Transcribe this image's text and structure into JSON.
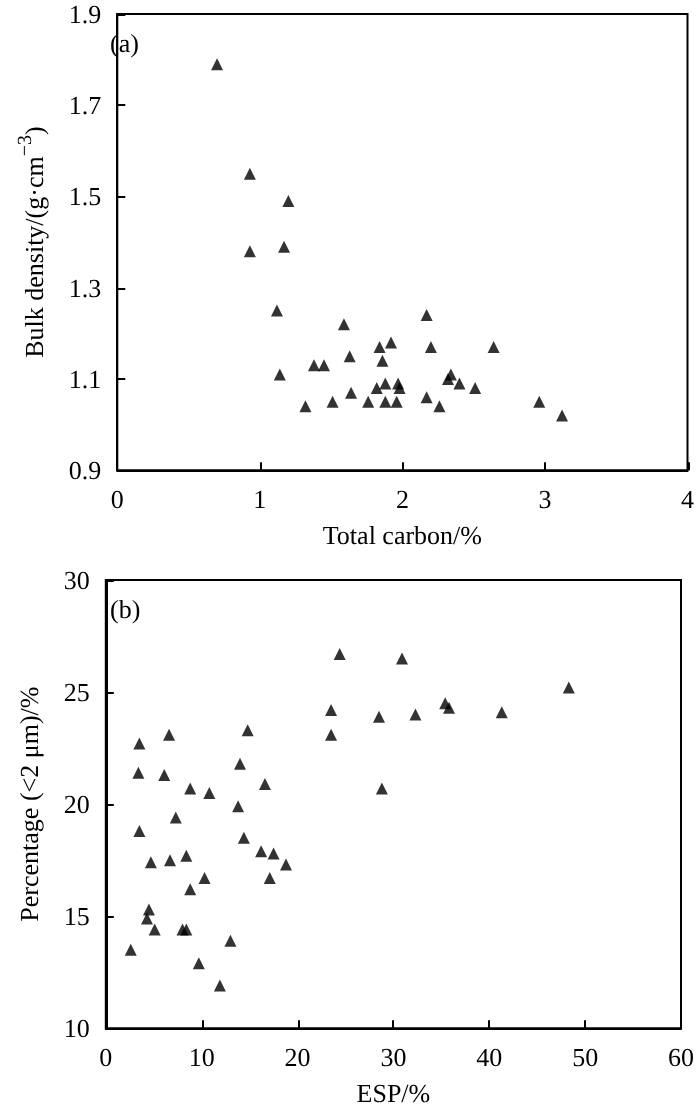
{
  "chart_data": [
    {
      "type": "scatter",
      "xlabel": "Total carbon/%",
      "ylabel": "Bulk density/(g·cm$^{−3}$)",
      "annotations": [
        "(a)"
      ],
      "marker": "triangle",
      "grid": false,
      "xlim": [
        0,
        4
      ],
      "xticks": [
        0,
        1,
        2,
        3,
        4
      ],
      "ylim": [
        0.9,
        1.9
      ],
      "yticks": [
        0.9,
        1.1,
        1.3,
        1.5,
        1.7,
        1.9
      ],
      "series": [
        {
          "color": "#000000",
          "x": [
            0.7,
            0.93,
            1.2,
            0.93,
            1.17,
            1.12,
            1.59,
            2.17,
            1.84,
            1.92,
            2.2,
            2.64,
            1.63,
            1.38,
            1.45,
            1.86,
            1.14,
            2.34,
            2.32,
            2.4,
            2.51,
            1.82,
            1.88,
            1.97,
            1.98,
            1.64,
            1.51,
            1.76,
            1.88,
            1.96,
            2.17,
            2.26,
            1.32,
            2.96,
            3.12
          ],
          "values": [
            1.79,
            1.55,
            1.49,
            1.38,
            1.39,
            1.25,
            1.22,
            1.24,
            1.17,
            1.18,
            1.17,
            1.17,
            1.15,
            1.13,
            1.13,
            1.14,
            1.11,
            1.11,
            1.1,
            1.09,
            1.08,
            1.08,
            1.09,
            1.09,
            1.08,
            1.07,
            1.05,
            1.05,
            1.05,
            1.05,
            1.06,
            1.04,
            1.04,
            1.05,
            1.02
          ]
        }
      ]
    },
    {
      "type": "scatter",
      "xlabel": "ESP/%",
      "ylabel": "Percentage (<2 μm)/%",
      "annotations": [
        "(b)"
      ],
      "marker": "triangle",
      "grid": false,
      "xlim": [
        0,
        60
      ],
      "xticks": [
        0,
        10,
        20,
        30,
        40,
        50,
        60
      ],
      "ylim": [
        10,
        30
      ],
      "yticks": [
        10,
        15,
        20,
        25,
        30
      ],
      "series": [
        {
          "color": "#000000",
          "x": [
            24.4,
            23.5,
            23.5,
            28.5,
            28.8,
            3.5,
            3.4,
            6.6,
            6.1,
            3.5,
            4.7,
            7.3,
            6.7,
            8.8,
            10.8,
            14.8,
            14.0,
            13.8,
            14.4,
            16.6,
            16.2,
            17.5,
            18.8,
            17.1,
            8.4,
            8.8,
            10.3,
            4.5,
            4.3,
            5.1,
            8.0,
            8.4,
            2.6,
            13.0,
            9.7,
            11.9,
            30.9,
            48.3,
            32.3,
            35.4,
            35.8,
            41.3
          ],
          "values": [
            26.7,
            24.2,
            23.1,
            23.9,
            20.7,
            22.7,
            21.4,
            23.1,
            21.3,
            18.8,
            17.4,
            19.4,
            17.5,
            20.7,
            20.5,
            23.3,
            21.8,
            19.9,
            18.5,
            20.9,
            17.9,
            17.8,
            17.3,
            16.7,
            17.7,
            16.2,
            16.7,
            15.3,
            14.9,
            14.4,
            14.4,
            14.4,
            13.5,
            13.9,
            12.9,
            11.9,
            26.5,
            25.2,
            24.0,
            24.5,
            24.3,
            24.1
          ]
        }
      ]
    }
  ]
}
